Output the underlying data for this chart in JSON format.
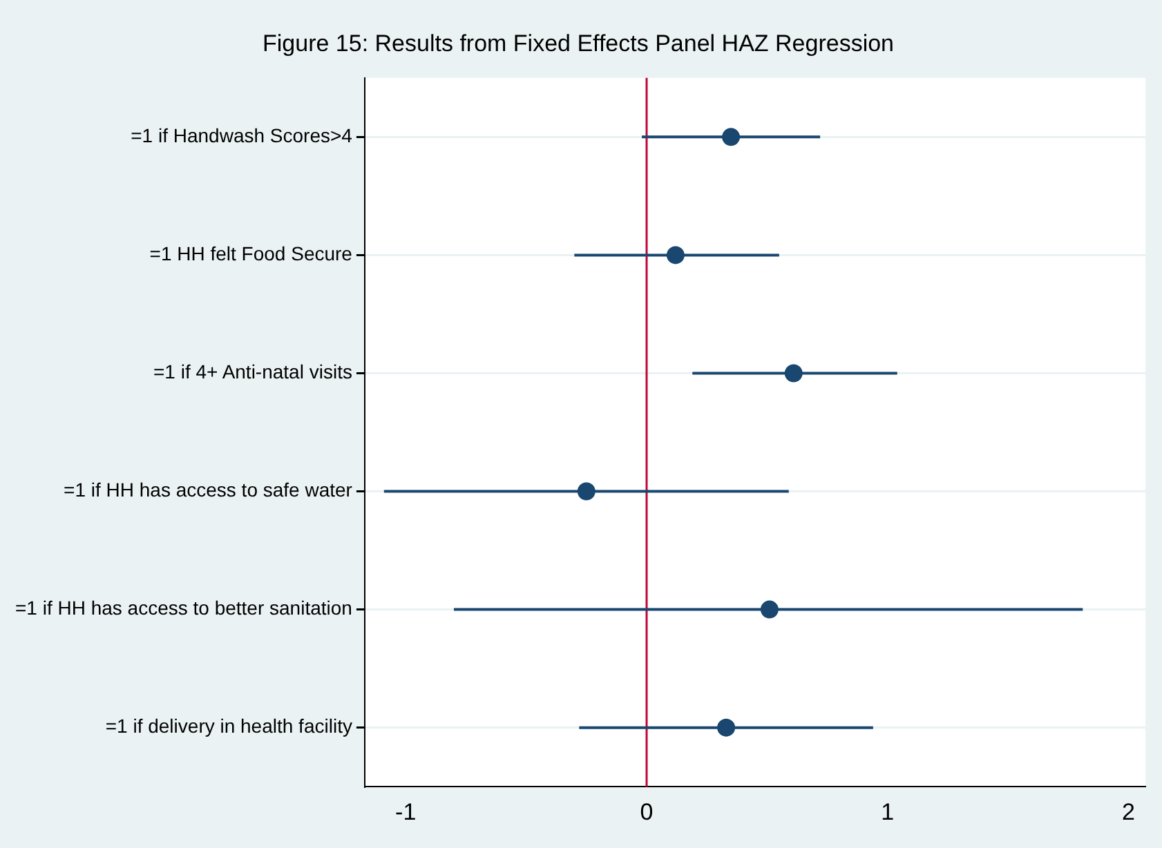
{
  "chart_data": {
    "type": "scatter",
    "orientation": "horizontal",
    "title": "Figure 15: Results from Fixed Effects Panel HAZ Regression",
    "categories": [
      "=1 if Handwash Scores>4",
      "=1 HH felt Food Secure",
      "=1 if 4+ Anti-natal visits",
      "=1 if HH has access to safe water",
      "=1 if HH has access to better sanitation",
      "=1 if delivery in health facility"
    ],
    "values": [
      0.35,
      0.12,
      0.61,
      -0.25,
      0.51,
      0.33
    ],
    "errors": [
      [
        -0.02,
        0.72
      ],
      [
        -0.3,
        0.55
      ],
      [
        0.19,
        1.04
      ],
      [
        -1.09,
        0.59
      ],
      [
        -0.8,
        1.81
      ],
      [
        -0.28,
        0.94
      ]
    ],
    "color": "#1a476f",
    "marker": "circle",
    "xlim": [
      -1.17,
      2.07
    ],
    "xticks": [
      -1,
      0,
      1,
      2
    ],
    "ref_lines": [
      {
        "axis": "x",
        "value": 0,
        "color": "#c10534"
      }
    ],
    "grid": "y",
    "legend": false
  }
}
